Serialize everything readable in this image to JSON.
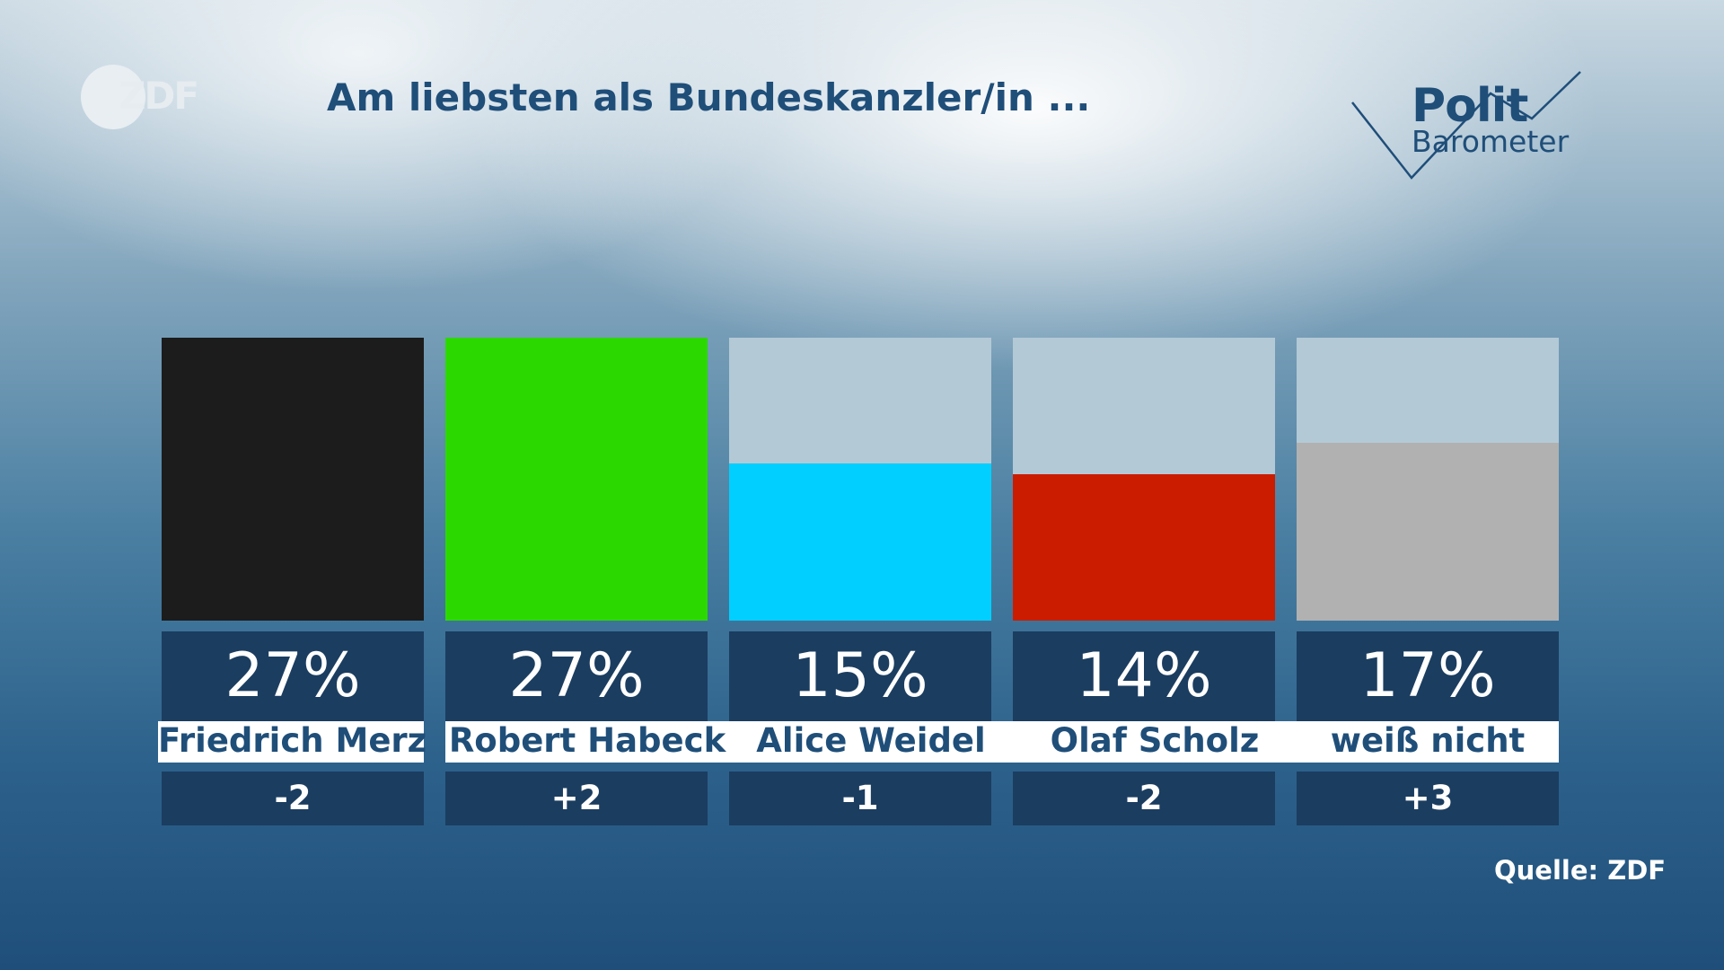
{
  "logo": {
    "text": "ZDF"
  },
  "title": "Am liebsten als Bundeskanzler/in ...",
  "brand": {
    "line1": "Polit",
    "line2": "Barometer"
  },
  "source": "Quelle: ZDF",
  "chart_data": {
    "type": "bar",
    "title": "Am liebsten als Bundeskanzler/in ...",
    "categories": [
      "Friedrich Merz",
      "Robert Habeck",
      "Alice Weidel",
      "Olaf Scholz",
      "weiß nicht"
    ],
    "values": [
      27,
      27,
      15,
      14,
      17
    ],
    "value_labels": [
      "27%",
      "27%",
      "15%",
      "14%",
      "17%"
    ],
    "changes": [
      "-2",
      "+2",
      "-1",
      "-2",
      "+3"
    ],
    "colors": [
      "#1c1c1c",
      "#2bd900",
      "#00cfff",
      "#cc1c00",
      "#b1b1b1"
    ],
    "ylim": [
      0,
      27
    ],
    "grid": false,
    "legend": "none"
  }
}
